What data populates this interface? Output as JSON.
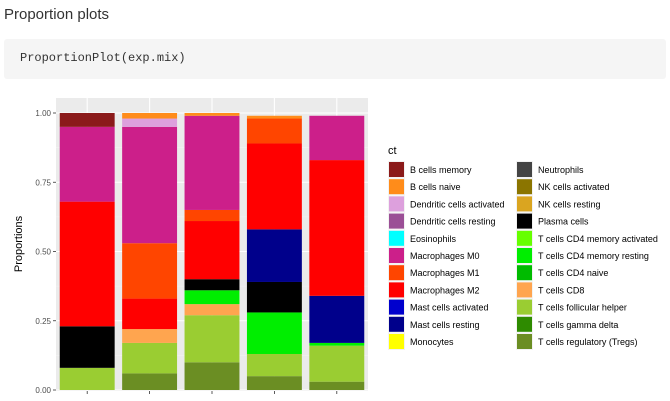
{
  "page": {
    "title": "Proportion plots",
    "code": "ProportionPlot(exp.mix)"
  },
  "chart_data": {
    "type": "bar",
    "stacked": true,
    "ylabel": "Proportions",
    "xlabel": "",
    "ylim": [
      0,
      1
    ],
    "yticks": [
      0.0,
      0.25,
      0.5,
      0.75,
      1.0
    ],
    "ytick_labels": [
      "0.00",
      "0.25",
      "0.50",
      "0.75",
      "1.00"
    ],
    "grid": true,
    "legend_title": "ct",
    "legend_position": "right",
    "categories": [
      "Mixture 1",
      "Mixture 2",
      "Mixture 3",
      "Mixture 4",
      "Mixture 5"
    ],
    "series": [
      {
        "name": "B cells memory",
        "color": "#8B1A1A",
        "values": [
          0.05,
          0.0,
          0.0,
          0.0,
          0.0
        ]
      },
      {
        "name": "B cells naive",
        "color": "#FF8C1A",
        "values": [
          0.0,
          0.02,
          0.01,
          0.01,
          0.0
        ]
      },
      {
        "name": "Dendritic cells activated",
        "color": "#DDA0DD",
        "values": [
          0.0,
          0.03,
          0.0,
          0.0,
          0.0
        ]
      },
      {
        "name": "Dendritic cells resting",
        "color": "#9B4F96",
        "values": [
          0.0,
          0.0,
          0.0,
          0.0,
          0.0
        ]
      },
      {
        "name": "Eosinophils",
        "color": "#00FFFF",
        "values": [
          0.0,
          0.0,
          0.0,
          0.0,
          0.0
        ]
      },
      {
        "name": "Macrophages M0",
        "color": "#CC1F8A",
        "values": [
          0.27,
          0.42,
          0.34,
          0.0,
          0.16
        ]
      },
      {
        "name": "Macrophages M1",
        "color": "#FF4500",
        "values": [
          0.0,
          0.2,
          0.04,
          0.09,
          0.0
        ]
      },
      {
        "name": "Macrophages M2",
        "color": "#FF0000",
        "values": [
          0.45,
          0.11,
          0.21,
          0.31,
          0.49
        ]
      },
      {
        "name": "Mast cells activated",
        "color": "#0000CD",
        "values": [
          0.0,
          0.0,
          0.0,
          0.0,
          0.0
        ]
      },
      {
        "name": "Mast cells resting",
        "color": "#00008B",
        "values": [
          0.0,
          0.0,
          0.0,
          0.19,
          0.17
        ]
      },
      {
        "name": "Monocytes",
        "color": "#FFFF00",
        "values": [
          0.0,
          0.0,
          0.0,
          0.0,
          0.0
        ]
      },
      {
        "name": "Neutrophils",
        "color": "#444444",
        "values": [
          0.0,
          0.0,
          0.0,
          0.0,
          0.0
        ]
      },
      {
        "name": "NK cells activated",
        "color": "#8B7500",
        "values": [
          0.0,
          0.0,
          0.0,
          0.0,
          0.0
        ]
      },
      {
        "name": "NK cells resting",
        "color": "#DAA520",
        "values": [
          0.0,
          0.0,
          0.0,
          0.0,
          0.0
        ]
      },
      {
        "name": "Plasma cells",
        "color": "#000000",
        "values": [
          0.15,
          0.0,
          0.04,
          0.11,
          0.0
        ]
      },
      {
        "name": "T cells CD4 memory activated",
        "color": "#66FF00",
        "values": [
          0.0,
          0.0,
          0.0,
          0.0,
          0.0
        ]
      },
      {
        "name": "T cells CD4 memory resting",
        "color": "#00EE00",
        "values": [
          0.0,
          0.0,
          0.05,
          0.15,
          0.01
        ]
      },
      {
        "name": "T cells CD4 naive",
        "color": "#00BB00",
        "values": [
          0.0,
          0.0,
          0.0,
          0.0,
          0.0
        ]
      },
      {
        "name": "T cells CD8",
        "color": "#FFA54F",
        "values": [
          0.0,
          0.05,
          0.04,
          0.0,
          0.0
        ]
      },
      {
        "name": "T cells follicular helper",
        "color": "#9ACD32",
        "values": [
          0.08,
          0.11,
          0.17,
          0.08,
          0.13
        ]
      },
      {
        "name": "T cells gamma delta",
        "color": "#2E8B00",
        "values": [
          0.0,
          0.0,
          0.0,
          0.0,
          0.0
        ]
      },
      {
        "name": "T cells regulatory (Tregs)",
        "color": "#6B8E23",
        "values": [
          0.0,
          0.06,
          0.1,
          0.05,
          0.03
        ]
      }
    ]
  }
}
